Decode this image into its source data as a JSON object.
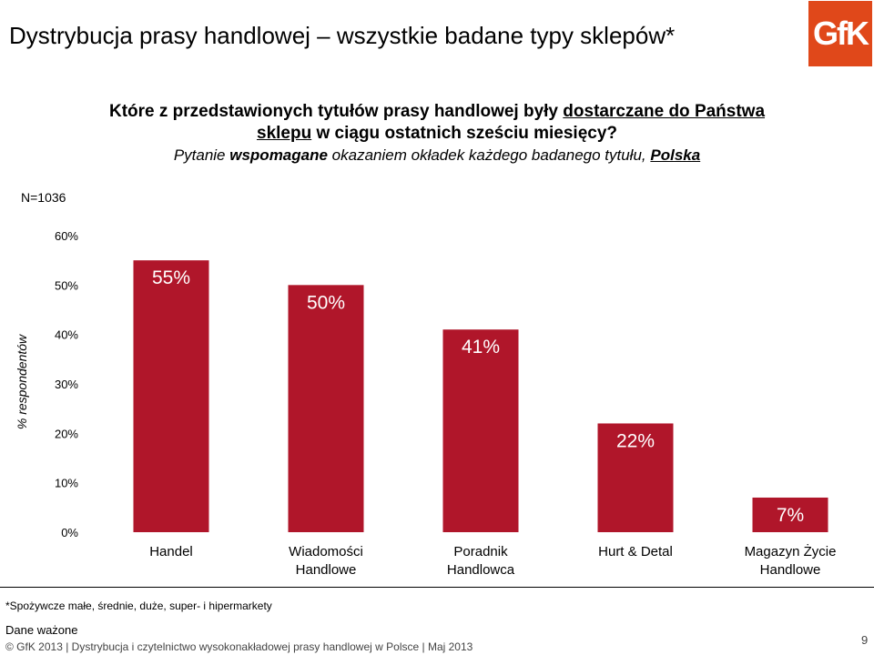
{
  "slide_title": "Dystrybucja prasy handlowej – wszystkie badane typy sklepów*",
  "logo_text": "GfK",
  "question": {
    "line1_a": "Które z przedstawionych tytułów prasy handlowej były ",
    "line1_b": "dostarczane do Państwa",
    "line2_a": "sklepu",
    "line2_b": " w ciągu ostatnich sześciu miesięcy?",
    "line3_a": "Pytanie ",
    "line3_b": "wspomagane",
    "line3_c": " okazaniem okładek każdego badanego tytułu, ",
    "line3_d": "Polska"
  },
  "n_base": "N=1036",
  "footnote": "*Spożywcze małe, średnie, duże, super- i hipermarkety",
  "dane": "Dane ważone",
  "footer": "© GfK 2013 | Dystrybucja i czytelnictwo wysokonakładowej prasy handlowej w Polsce | Maj 2013",
  "page_number": "9",
  "chart_data": {
    "type": "bar",
    "categories": [
      [
        "Handel"
      ],
      [
        "Wiadomości",
        "Handlowe"
      ],
      [
        "Poradnik",
        "Handlowca"
      ],
      [
        "Hurt & Detal"
      ],
      [
        "Magazyn Życie",
        "Handlowe"
      ]
    ],
    "values": [
      55,
      50,
      41,
      22,
      7
    ],
    "value_labels": [
      "55%",
      "50%",
      "41%",
      "22%",
      "7%"
    ],
    "ylabel": "% respondentów",
    "ylim": [
      0,
      60
    ],
    "yticks": [
      0,
      10,
      20,
      30,
      40,
      50,
      60
    ],
    "ytick_labels": [
      "0%",
      "10%",
      "20%",
      "30%",
      "40%",
      "50%",
      "60%"
    ],
    "bar_color": "#b0162a",
    "grid": false
  }
}
